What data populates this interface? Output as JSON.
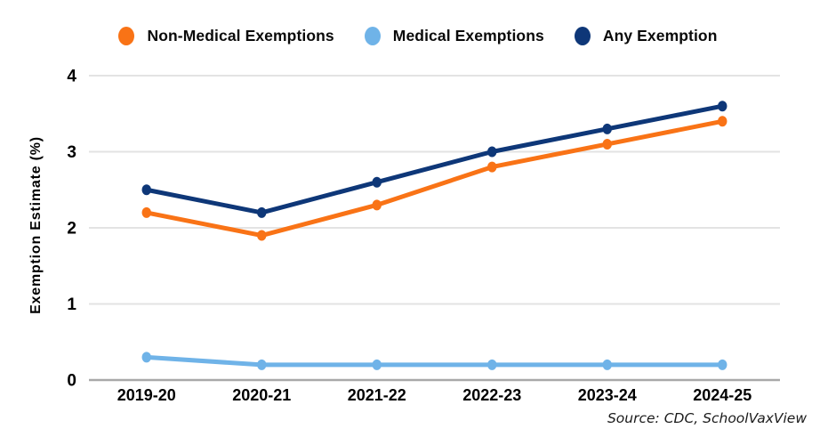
{
  "chart_data": {
    "type": "line",
    "title": "",
    "xlabel": "",
    "ylabel": "Exemption Estimate (%)",
    "categories": [
      "2019-20",
      "2020-21",
      "2021-22",
      "2022-23",
      "2023-24",
      "2024-25"
    ],
    "series": [
      {
        "name": "Non-Medical Exemptions",
        "color": "#F97316",
        "values": [
          2.2,
          1.9,
          2.3,
          2.8,
          3.1,
          3.4
        ]
      },
      {
        "name": "Medical Exemptions",
        "color": "#6FB3E8",
        "values": [
          0.3,
          0.2,
          0.2,
          0.2,
          0.2,
          0.2
        ]
      },
      {
        "name": "Any Exemption",
        "color": "#0E3778",
        "values": [
          2.5,
          2.2,
          2.6,
          3.0,
          3.3,
          3.6
        ]
      }
    ],
    "ylim": [
      0,
      4
    ],
    "yticks": [
      0,
      1,
      2,
      3,
      4
    ],
    "grid": true,
    "legend_position": "top"
  },
  "source_note": "Source: CDC, SchoolVaxView",
  "style": {
    "gridline_color": "#E3E3E3",
    "axis_color": "#A9A9A9",
    "tick_label_color": "#000000"
  }
}
